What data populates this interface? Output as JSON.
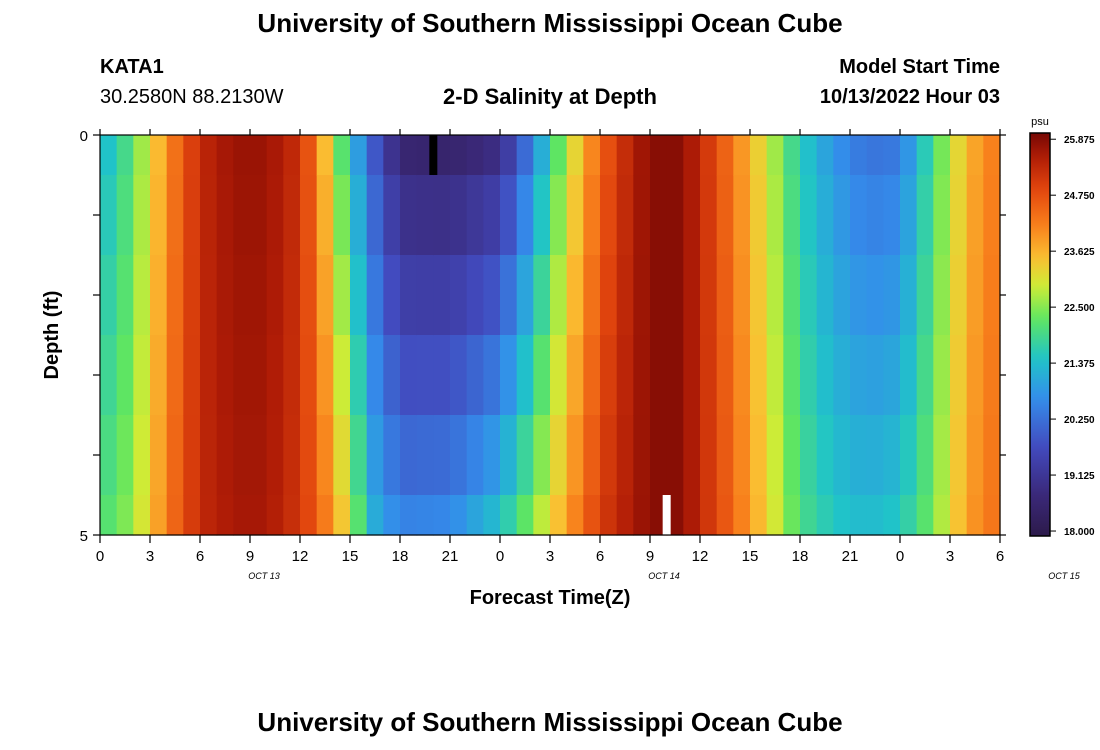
{
  "header": {
    "institution_title": "University of Southern Mississippi Ocean Cube",
    "station_id": "KATA1",
    "station_coords": "30.2580N  88.2130W",
    "plot_title": "2-D Salinity at Depth",
    "model_start_label": "Model Start Time",
    "model_start_time": "10/13/2022 Hour 03"
  },
  "footer": {
    "institution_title": "University of Southern Mississippi Ocean Cube"
  },
  "colors": {
    "low": "#2a1a4e",
    "high": "#7a0a04",
    "marker_top": "#000000",
    "marker_bottom": "#ffffff"
  },
  "chart_data": {
    "type": "heatmap",
    "title": "2-D Salinity at Depth",
    "xlabel": "Forecast Time(Z)",
    "ylabel": "Depth (ft)",
    "x_hours_since_start": [
      0,
      54
    ],
    "x_tick_labels": [
      "0",
      "3",
      "6",
      "9",
      "12",
      "15",
      "18",
      "21",
      "0",
      "3",
      "6",
      "9",
      "12",
      "15",
      "18",
      "21",
      "0",
      "3",
      "6"
    ],
    "date_labels": [
      {
        "label": "OCT 13",
        "hour": 12
      },
      {
        "label": "OCT 14",
        "hour": 36
      },
      {
        "label": "OCT 15",
        "hour": 60
      }
    ],
    "y_range_ft": [
      0,
      5
    ],
    "y_tick_labels": [
      "0",
      "5"
    ],
    "depth_layers_ft": [
      0,
      0.5,
      1.5,
      2.5,
      3.5,
      4.5,
      5
    ],
    "colorbar": {
      "unit": "psu",
      "min": 17.9,
      "max": 26.0,
      "tick_values": [
        18.0,
        19.125,
        20.25,
        21.375,
        22.5,
        23.625,
        24.75,
        25.875
      ],
      "tick_labels": [
        "18.000",
        "19.125",
        "20.250",
        "21.375",
        "22.500",
        "23.625",
        "24.750",
        "25.875"
      ]
    },
    "salinity_profile_psu": {
      "hours": [
        0,
        2,
        4,
        6,
        8,
        10,
        12,
        13,
        15,
        16,
        18,
        21,
        24,
        26,
        28,
        30,
        32,
        33,
        34,
        35,
        36,
        37,
        38,
        40,
        42,
        44,
        46,
        48,
        50,
        52,
        54
      ],
      "surface": [
        21.2,
        22.2,
        24.0,
        25.3,
        25.7,
        25.7,
        25.2,
        24.2,
        21.5,
        20.3,
        18.6,
        18.5,
        18.9,
        20.6,
        22.8,
        24.5,
        25.5,
        25.8,
        25.9,
        25.8,
        25.3,
        24.8,
        24.2,
        23.0,
        21.6,
        20.8,
        20.3,
        20.4,
        22.0,
        23.6,
        24.3
      ],
      "bottom": [
        22.0,
        22.6,
        24.2,
        25.3,
        25.6,
        25.6,
        25.1,
        24.6,
        23.0,
        21.3,
        20.5,
        20.6,
        21.4,
        22.5,
        23.8,
        25.0,
        25.6,
        25.8,
        25.9,
        25.8,
        25.3,
        24.9,
        24.4,
        23.3,
        22.0,
        21.5,
        21.3,
        21.5,
        22.4,
        23.8,
        24.4
      ]
    },
    "markers": [
      {
        "name": "surface-time-marker",
        "hour": 20,
        "depth_range_ft": [
          0,
          0.5
        ],
        "color": "black"
      },
      {
        "name": "bottom-time-marker",
        "hour": 34,
        "depth_range_ft": [
          4.5,
          5
        ],
        "color": "white"
      }
    ]
  }
}
